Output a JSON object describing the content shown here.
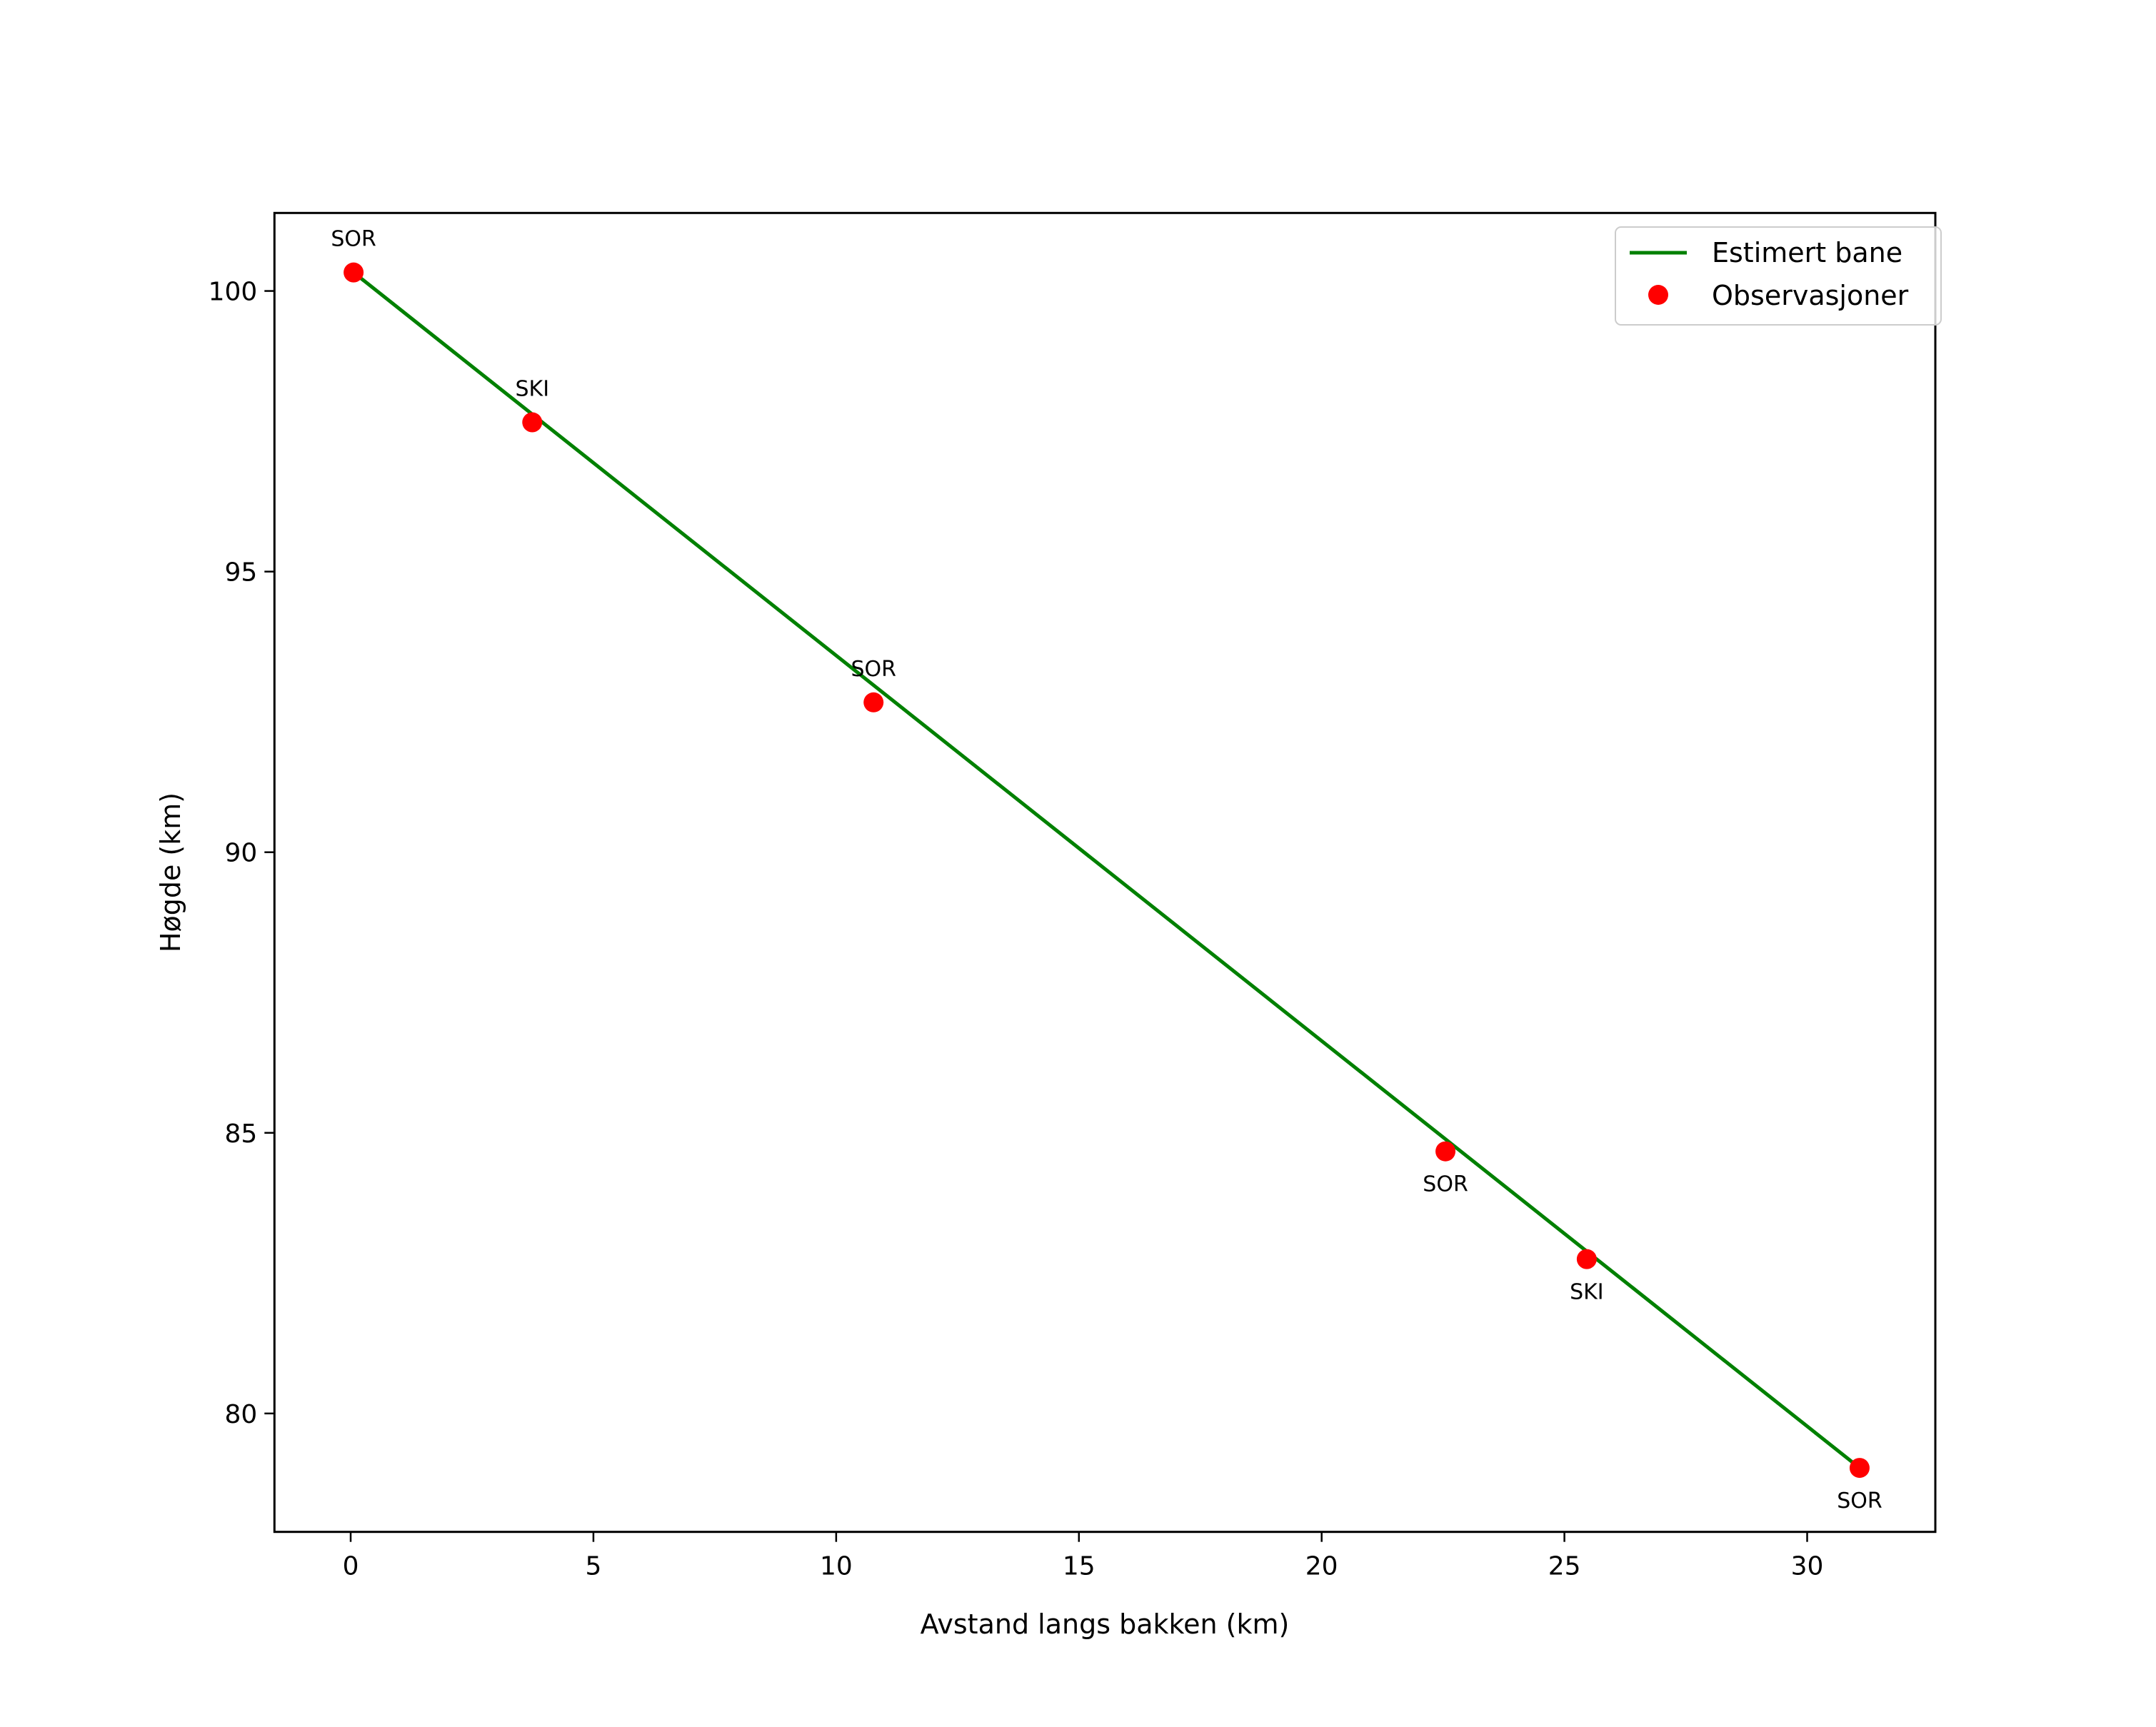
{
  "chart_data": {
    "type": "line",
    "title": "",
    "xlabel": "Avstand langs bakken (km)",
    "ylabel": "Høgde (km)",
    "xlim": [
      -1.57,
      32.64
    ],
    "ylim": [
      77.89,
      101.39
    ],
    "x_ticks": [
      0,
      5,
      10,
      15,
      20,
      25,
      30
    ],
    "y_ticks": [
      80,
      85,
      90,
      95,
      100
    ],
    "grid": false,
    "legend_position": "upper right",
    "series": [
      {
        "name": "Estimert bane",
        "kind": "line",
        "color": "#008000",
        "x": [
          0.06,
          31.08
        ],
        "y": [
          100.33,
          79.03
        ]
      },
      {
        "name": "Observasjoner",
        "kind": "scatter",
        "color": "#ff0000",
        "points": [
          {
            "x": 0.06,
            "y": 100.33,
            "label": "SOR",
            "label_pos": "above"
          },
          {
            "x": 3.74,
            "y": 97.66,
            "label": "SKI",
            "label_pos": "above"
          },
          {
            "x": 10.77,
            "y": 92.67,
            "label": "SOR",
            "label_pos": "above"
          },
          {
            "x": 22.55,
            "y": 84.67,
            "label": "SOR",
            "label_pos": "below"
          },
          {
            "x": 25.46,
            "y": 82.75,
            "label": "SKI",
            "label_pos": "below"
          },
          {
            "x": 31.08,
            "y": 79.03,
            "label": "SOR",
            "label_pos": "below"
          }
        ]
      }
    ]
  },
  "legend": {
    "items": [
      {
        "label": "Estimert bane",
        "color": "#008000",
        "symbol": "line"
      },
      {
        "label": "Observasjoner",
        "color": "#ff0000",
        "symbol": "dot"
      }
    ]
  }
}
